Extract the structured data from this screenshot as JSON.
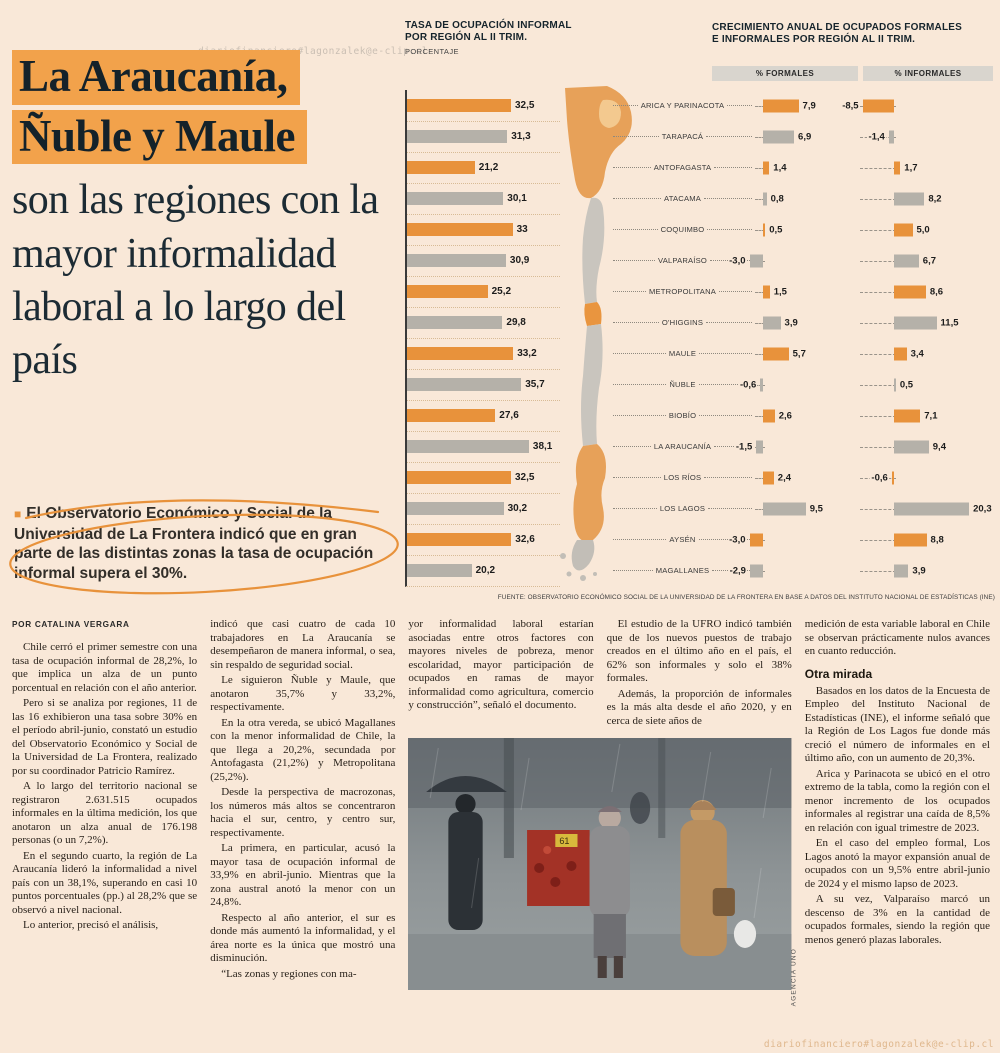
{
  "page": {
    "watermark_top": "diariofinanciero#lagonzalek@e-clip.cl",
    "watermark_bottom": "diariofinanciero#lagonzalek@e-clip.cl"
  },
  "colors": {
    "bar_orange": "#e8923b",
    "bar_gray": "#b5b1a9",
    "highlight": "#f2a24b",
    "background": "#f9e8d8",
    "headline_text": "#1c2b34"
  },
  "headline": {
    "highlight_lines": [
      "La Araucanía,",
      "Ñuble y Maule"
    ],
    "rest": "son las regiones con la mayor informalidad laboral a lo largo del país"
  },
  "lead": {
    "bullet": "■",
    "text": "El Observatorio Económico y Social de la Universidad de La Frontera indicó que en gran parte de las distintas zonas la tasa de ocupación informal supera el 30%."
  },
  "byline": "POR CATALINA VERGARA",
  "charts_ui": {
    "left_title_1": "TASA DE OCUPACIÓN INFORMAL",
    "left_title_2": "POR REGIÓN AL II TRIM.",
    "left_subtitle": "PORCENTAJE",
    "right_title_1": "CRECIMIENTO ANUAL DE OCUPADOS FORMALES",
    "right_title_2": "E INFORMALES POR REGIÓN AL II TRIM.",
    "formales_header": "% FORMALES",
    "informales_header": "% INFORMALES",
    "source": "FUENTE: OBSERVATORIO ECONÓMICO SOCIAL DE LA UNIVERSIDAD DE LA FRONTERA EN BASE A DATOS DEL INSTITUTO NACIONAL DE ESTADÍSTICAS (INE)"
  },
  "chart_data": [
    {
      "type": "bar",
      "orientation": "horizontal",
      "title": "TASA DE OCUPACIÓN INFORMAL POR REGIÓN AL II TRIM.",
      "unit": "PORCENTAJE",
      "xlim": [
        0,
        40
      ],
      "categories": [
        "ARICA Y PARINACOTA",
        "TARAPACÁ",
        "ANTOFAGASTA",
        "ATACAMA",
        "COQUIMBO",
        "VALPARAÍSO",
        "METROPOLITANA",
        "O'HIGGINS",
        "MAULE",
        "ÑUBLE",
        "BIOBÍO",
        "LA ARAUCANÍA",
        "LOS RÍOS",
        "LOS LAGOS",
        "AYSÉN",
        "MAGALLANES"
      ],
      "values": [
        32.5,
        31.3,
        21.2,
        30.1,
        33,
        30.9,
        25.2,
        29.8,
        33.2,
        35.7,
        27.6,
        38.1,
        32.5,
        30.2,
        32.6,
        20.2
      ],
      "labels": [
        "32,5",
        "31,3",
        "21,2",
        "30,1",
        "33",
        "30,9",
        "25,2",
        "29,8",
        "33,2",
        "35,7",
        "27,6",
        "38,1",
        "32,5",
        "30,2",
        "32,6",
        "20,2"
      ]
    },
    {
      "type": "bar",
      "orientation": "horizontal-diverging",
      "title": "CRECIMIENTO ANUAL DE OCUPADOS FORMALES E INFORMALES POR REGIÓN AL II TRIM.",
      "categories": [
        "ARICA Y PARINACOTA",
        "TARAPACÁ",
        "ANTOFAGASTA",
        "ATACAMA",
        "COQUIMBO",
        "VALPARAÍSO",
        "METROPOLITANA",
        "O'HIGGINS",
        "MAULE",
        "ÑUBLE",
        "BIOBÍO",
        "LA ARAUCANÍA",
        "LOS RÍOS",
        "LOS LAGOS",
        "AYSÉN",
        "MAGALLANES"
      ],
      "series": [
        {
          "name": "% FORMALES",
          "values": [
            7.9,
            6.9,
            1.4,
            0.8,
            0.5,
            -3.0,
            1.5,
            3.9,
            5.7,
            -0.6,
            2.6,
            -1.5,
            2.4,
            9.5,
            -3.0,
            -2.9
          ],
          "labels": [
            "7,9",
            "6,9",
            "1,4",
            "0,8",
            "0,5",
            "-3,0",
            "1,5",
            "3,9",
            "5,7",
            "-0,6",
            "2,6",
            "-1,5",
            "2,4",
            "9,5",
            "-3,0",
            "-2,9"
          ]
        },
        {
          "name": "% INFORMALES",
          "values": [
            -8.5,
            -1.4,
            1.7,
            8.2,
            5.0,
            6.7,
            8.6,
            11.5,
            3.4,
            0.5,
            7.1,
            9.4,
            -0.6,
            20.3,
            8.8,
            3.9
          ],
          "labels": [
            "-8,5",
            "-1,4",
            "1,7",
            "8,2",
            "5,0",
            "6,7",
            "8,6",
            "11,5",
            "3,4",
            "0,5",
            "7,1",
            "9,4",
            "-0,6",
            "20,3",
            "8,8",
            "3,9"
          ]
        }
      ]
    }
  ],
  "article": {
    "photo_credit": "AGENCIA UNO",
    "columns": [
      {
        "items": [
          {
            "text": "Chile cerró el primer semestre con una tasa de ocupación informal de 28,2%, lo que implica un alza de un punto porcentual en relación con el año anterior."
          },
          {
            "text": "Pero si se analiza por regiones, 11 de las 16 exhibieron una tasa sobre 30% en el período abril-junio, constató un estudio del Observatorio Económico y Social de la Universidad de La Frontera, realizado por su coordinador Patricio Ramírez."
          },
          {
            "text": "A lo largo del territorio nacional se registraron 2.631.515 ocupados informales en la última medición, los que anotaron un alza anual de 176.198 personas (o un 7,2%)."
          },
          {
            "text": "En el segundo cuarto, la región de La Araucanía lideró la informalidad a nivel país con un 38,1%, superando en casi 10 puntos porcentuales (pp.) al 28,2% que se observó a nivel nacional."
          },
          {
            "text": "Lo anterior, precisó el análisis,"
          }
        ]
      },
      {
        "items": [
          {
            "cont": true,
            "text": "indicó que casi cuatro de cada 10 trabajadores en La Araucanía se desempeñaron de manera informal, o sea, sin respaldo de seguridad social."
          },
          {
            "text": "Le siguieron Ñuble y Maule, que anotaron 35,7% y 33,2%, respectivamente."
          },
          {
            "text": "En la otra vereda, se ubicó Magallanes con la menor informalidad de Chile, la que llega a 20,2%, secundada por Antofagasta (21,2%) y Metropolitana (25,2%)."
          },
          {
            "text": "Desde la perspectiva de macrozonas, los números más altos se concentraron hacia el sur, centro, y centro sur, respectivamente."
          },
          {
            "text": "La primera, en particular, acusó la mayor tasa de ocupación informal de 33,9% en abril-junio. Mientras que la zona austral anotó la menor con un 24,8%."
          },
          {
            "text": "Respecto al año anterior, el sur es donde más aumentó la informalidad, y el área norte es la única que mostró una disminución."
          },
          {
            "text": "“Las zonas y regiones con ma-"
          }
        ]
      },
      {
        "items": [
          {
            "cont": true,
            "text": "yor informalidad laboral estarían asociadas entre otros factores con mayores niveles de pobreza, menor escolaridad, mayor participación de ocupados en ramas de mayor informalidad como agricultura, comercio y construcción”, señaló el documento."
          }
        ]
      },
      {
        "items": [
          {
            "text": "El estudio de la UFRO indicó también que de los nuevos puestos de trabajo creados en el último año en el país, el 62% son informales y solo el 38% formales."
          },
          {
            "text": "Además, la proporción de informales es la más alta desde el año 2020, y en cerca de siete años de"
          }
        ]
      },
      {
        "items": [
          {
            "cont": true,
            "text": "medición de esta variable laboral en Chile se observan prácticamente nulos avances en cuanto reducción."
          },
          {
            "subhead": "Otra mirada"
          },
          {
            "text": "Basados en los datos de la Encuesta de Empleo del Instituto Nacional de Estadísticas (INE), el informe señaló que la Región de Los Lagos fue donde más creció el número de informales en el último año, con un aumento de 20,3%."
          },
          {
            "text": "Arica y Parinacota se ubicó en el otro extremo de la tabla, como la región con el menor incremento de los ocupados informales al registrar una caída de 8,5% en relación con igual trimestre de 2023."
          },
          {
            "text": "En el caso del empleo formal, Los Lagos anotó la mayor expansión anual de ocupados con un 9,5% entre abril-junio de 2024 y el mismo lapso de 2023."
          },
          {
            "text": "A su vez, Valparaíso marcó un descenso de 3% en la cantidad de ocupados formales, siendo la región que menos generó plazas laborales."
          }
        ]
      }
    ]
  }
}
